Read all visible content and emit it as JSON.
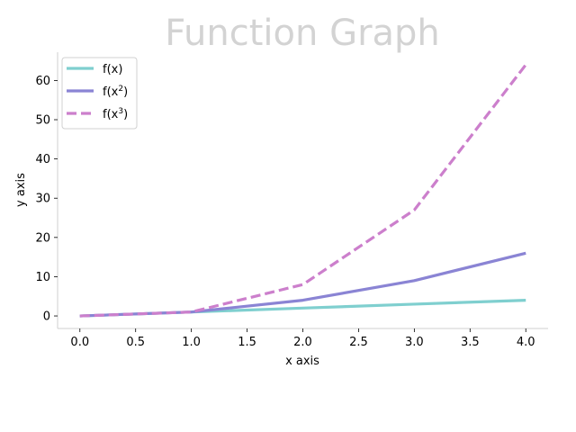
{
  "chart_data": {
    "type": "line",
    "title": "Function Graph",
    "xlabel": "x axis",
    "ylabel": "y axis",
    "xlim": [
      -0.2,
      4.2
    ],
    "ylim": [
      -3.2,
      67.2
    ],
    "x_ticks": [
      "0.0",
      "0.5",
      "1.0",
      "1.5",
      "2.0",
      "2.5",
      "3.0",
      "3.5",
      "4.0"
    ],
    "y_ticks": [
      "0",
      "10",
      "20",
      "30",
      "40",
      "50",
      "60"
    ],
    "x": [
      0,
      1,
      2,
      3,
      4
    ],
    "series": [
      {
        "name": "f(x)",
        "name_base": "f(x",
        "name_sup": "",
        "name_end": ")",
        "values": [
          0,
          1,
          2,
          3,
          4
        ],
        "color": "#7fcfcf",
        "style": "solid"
      },
      {
        "name": "f(x^2)",
        "name_base": "f(x",
        "name_sup": "2",
        "name_end": ")",
        "values": [
          0,
          1,
          4,
          9,
          16
        ],
        "color": "#8a84d4",
        "style": "solid"
      },
      {
        "name": "f(x^3)",
        "name_base": "f(x",
        "name_sup": "3",
        "name_end": ")",
        "values": [
          0,
          1,
          8,
          27,
          64
        ],
        "color": "#cc7fcc",
        "style": "dashed"
      }
    ],
    "grid": false,
    "legend_position": "upper-left"
  }
}
